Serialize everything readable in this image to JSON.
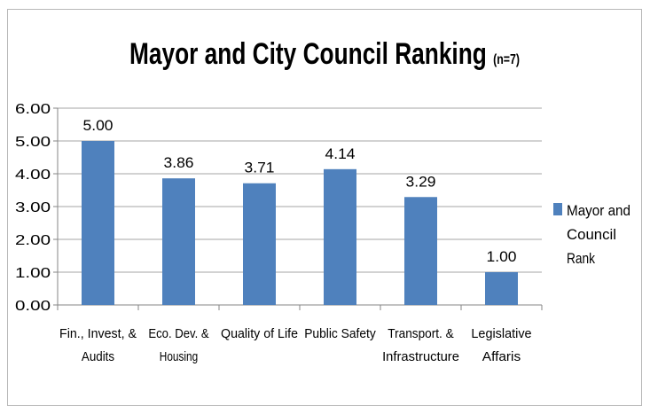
{
  "chart_data": {
    "type": "bar",
    "title": "Mayor and City Council Ranking",
    "subtitle": "(n=7)",
    "xlabel": "",
    "ylabel": "",
    "categories": [
      [
        "Fin., Invest, &",
        "Audits"
      ],
      [
        "Eco. Dev. &",
        "Housing"
      ],
      [
        "Quality of Life"
      ],
      [
        "Public Safety"
      ],
      [
        "Transport. &",
        "Infrastructure"
      ],
      [
        "Legislative",
        "Affaris"
      ]
    ],
    "series": [
      {
        "name": "Mayor and Council Rank",
        "values": [
          5.0,
          3.86,
          3.71,
          4.14,
          3.29,
          1.0
        ],
        "color": "#4f81bd"
      }
    ],
    "data_labels": [
      "5.00",
      "3.86",
      "3.71",
      "4.14",
      "3.29",
      "1.00"
    ],
    "ylim": [
      0,
      6
    ],
    "yticks": [
      "0.00",
      "1.00",
      "2.00",
      "3.00",
      "4.00",
      "5.00",
      "6.00"
    ],
    "grid": true,
    "legend": {
      "placement": "right",
      "lines": [
        "Mayor and",
        "Council",
        "Rank"
      ]
    }
  }
}
